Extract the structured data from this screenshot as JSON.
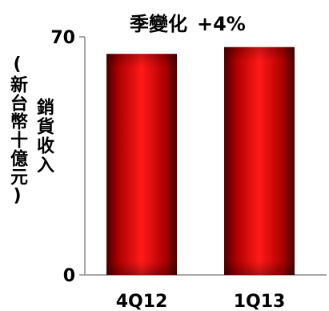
{
  "chart_data": {
    "type": "bar",
    "title": "季變化",
    "title_change": "+4%",
    "ylabel": "銷貨收入",
    "ylabel_unit": "(新台幣十億元)",
    "ylim": [
      0,
      70
    ],
    "yticks": [
      0,
      70
    ],
    "categories": [
      "4Q12",
      "1Q13"
    ],
    "values": [
      65,
      67
    ],
    "bar_color": "#d81010",
    "grid": false
  }
}
